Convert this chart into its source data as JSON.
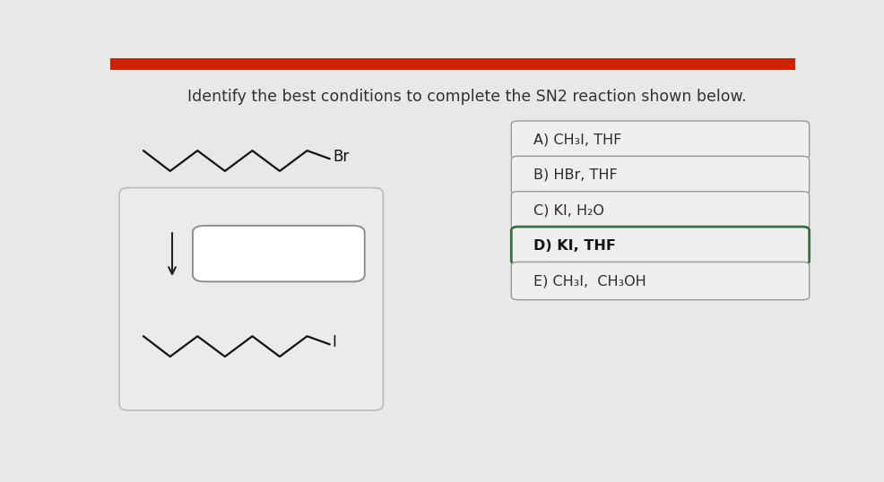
{
  "title": "Identify the best conditions to complete the SN2 reaction shown below.",
  "title_fontsize": 12.5,
  "bg_color": "#e8e8e8",
  "top_bar_color": "#cc2200",
  "options": [
    {
      "label": "A) CH₃I, THF",
      "bold": false,
      "border_color": "#999999",
      "text_color": "#2a2a2a",
      "bg": "#efefef"
    },
    {
      "label": "B) HBr, THF",
      "bold": false,
      "border_color": "#999999",
      "text_color": "#2a2a2a",
      "bg": "#efefef"
    },
    {
      "label": "C) KI, H₂O",
      "bold": false,
      "border_color": "#999999",
      "text_color": "#2a2a2a",
      "bg": "#efefef"
    },
    {
      "label": "D) KI, THF",
      "bold": true,
      "border_color": "#3a7040",
      "text_color": "#111111",
      "bg": "#efefef"
    },
    {
      "label": "E) CH₃I,  CH₃OH",
      "bold": false,
      "border_color": "#999999",
      "text_color": "#2a2a2a",
      "bg": "#efefef"
    }
  ],
  "molecule_color": "#111111",
  "br_label": "Br",
  "i_label": "I",
  "arrow_color": "#222222",
  "reaction_box_facecolor": "#ebebeb",
  "reaction_box_edgecolor": "#bbbbbb",
  "prod_box_facecolor": "#ffffff",
  "prod_box_edgecolor": "#888888"
}
